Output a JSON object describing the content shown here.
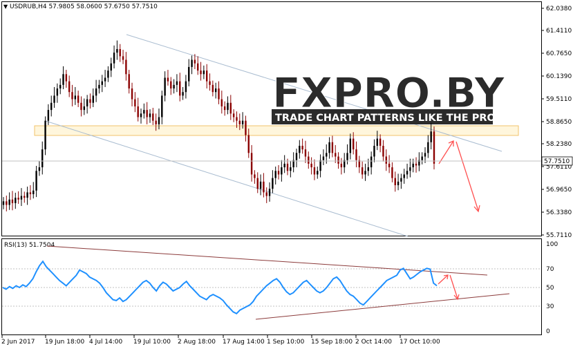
{
  "header": {
    "symbol_line": "USDRUB,H4  57.9805 58.0600 57.6750 57.7510",
    "collapse_icon": "triangle-down-icon"
  },
  "watermark": {
    "brand": "FXPRO.BY",
    "tagline": "TRADE CHART PATTERNS LIKE THE PROS"
  },
  "price_axis": {
    "labels": [
      "62.0380",
      "61.4110",
      "60.7650",
      "60.1390",
      "59.5110",
      "58.8650",
      "58.2380",
      "57.6110",
      "56.9650",
      "56.3380",
      "55.7110"
    ],
    "current_price": "57.7510"
  },
  "rsi": {
    "label": "RSI(13) 51.7504",
    "axis_labels": [
      "100",
      "70",
      "50",
      "30",
      "0"
    ]
  },
  "time_axis": {
    "labels": [
      "2 Jun 2017",
      "19 Jun 18:00",
      "4 Jul 14:00",
      "19 Jul 10:00",
      "2 Aug 18:00",
      "17 Aug 14:00",
      "1 Sep 10:00",
      "15 Sep 18:00",
      "2 Oct 14:00",
      "17 Oct 10:00"
    ]
  },
  "colors": {
    "bull": "#000000",
    "bear": "#8b0000",
    "channel": "#a9bcd0",
    "zone_fill": "#fff6dc",
    "zone_border": "#f2c36b",
    "rsi_line": "#1e90ff",
    "rsi_trend": "#8b3a3a",
    "arrow": "#ff5050"
  },
  "chart_data": [
    {
      "type": "candlestick",
      "symbol": "USDRUB",
      "timeframe": "H4",
      "ylim": [
        55.711,
        62.038
      ],
      "ohlc_last": {
        "open": 57.9805,
        "high": 58.06,
        "low": 57.675,
        "close": 57.751
      },
      "series": [
        {
          "values": [
            56.65,
            56.55,
            56.7,
            56.6,
            56.75,
            56.7,
            56.8,
            56.75,
            56.9,
            56.85,
            56.95,
            57.5,
            57.6,
            58.1,
            58.9,
            59.2,
            59.4,
            59.6,
            59.8,
            59.9,
            60.2,
            60.0,
            59.7,
            59.5,
            59.6,
            59.4,
            59.2,
            59.3,
            59.5,
            59.4,
            59.6,
            59.8,
            59.9,
            60.0,
            60.1,
            60.3,
            60.5,
            60.8,
            60.9,
            60.7,
            60.6,
            60.2,
            59.8,
            59.5,
            59.3,
            59.0,
            59.1,
            59.2,
            59.0,
            59.1,
            58.9,
            58.8,
            59.0,
            59.6,
            60.1,
            60.0,
            59.8,
            59.9,
            60.0,
            59.6,
            59.7,
            60.0,
            60.4,
            60.6,
            60.5,
            60.3,
            60.2,
            60.3,
            60.0,
            59.9,
            59.7,
            59.8,
            59.5,
            59.3,
            59.2,
            59.4,
            59.1,
            59.0,
            58.9,
            58.8,
            58.9,
            58.5,
            58.0,
            57.4,
            57.3,
            57.0,
            57.2,
            56.9,
            56.8,
            57.0,
            57.3,
            57.5,
            57.4,
            57.6,
            57.7,
            57.5,
            57.6,
            57.8,
            58.0,
            58.2,
            58.1,
            57.9,
            57.7,
            57.6,
            57.4,
            57.5,
            57.8,
            57.9,
            58.0,
            58.3,
            58.0,
            57.9,
            57.7,
            57.6,
            57.8,
            58.0,
            58.4,
            58.1,
            57.8,
            57.6,
            57.4,
            57.5,
            57.6,
            57.9,
            58.2,
            58.4,
            58.2,
            57.9,
            57.7,
            57.6,
            57.3,
            57.1,
            57.2,
            57.3,
            57.4,
            57.5,
            57.6,
            57.7,
            57.65,
            57.8,
            57.9,
            58.0,
            58.3,
            58.6,
            57.7
          ]
        }
      ]
    },
    {
      "type": "line",
      "name": "RSI(13)",
      "ylim": [
        0,
        100
      ],
      "levels": [
        70,
        50,
        30
      ],
      "series": [
        {
          "values": [
            50,
            48,
            51,
            49,
            52,
            50,
            53,
            51,
            55,
            60,
            68,
            75,
            80,
            74,
            70,
            66,
            62,
            58,
            55,
            52,
            56,
            60,
            64,
            70,
            68,
            66,
            62,
            60,
            58,
            55,
            50,
            44,
            40,
            36,
            35,
            38,
            34,
            36,
            40,
            44,
            48,
            52,
            56,
            58,
            55,
            50,
            46,
            52,
            56,
            54,
            50,
            46,
            48,
            50,
            54,
            57,
            52,
            48,
            44,
            40,
            38,
            36,
            40,
            42,
            40,
            38,
            35,
            30,
            26,
            22,
            20,
            24,
            26,
            28,
            30,
            34,
            40,
            44,
            48,
            52,
            55,
            58,
            60,
            56,
            50,
            45,
            42,
            44,
            48,
            52,
            56,
            58,
            54,
            50,
            46,
            44,
            46,
            50,
            55,
            60,
            62,
            58,
            52,
            46,
            42,
            40,
            36,
            32,
            30,
            34,
            38,
            42,
            46,
            50,
            54,
            58,
            60,
            62,
            64,
            70,
            72,
            66,
            60,
            62,
            65,
            68,
            70,
            72,
            71,
            55,
            52
          ]
        }
      ]
    }
  ]
}
